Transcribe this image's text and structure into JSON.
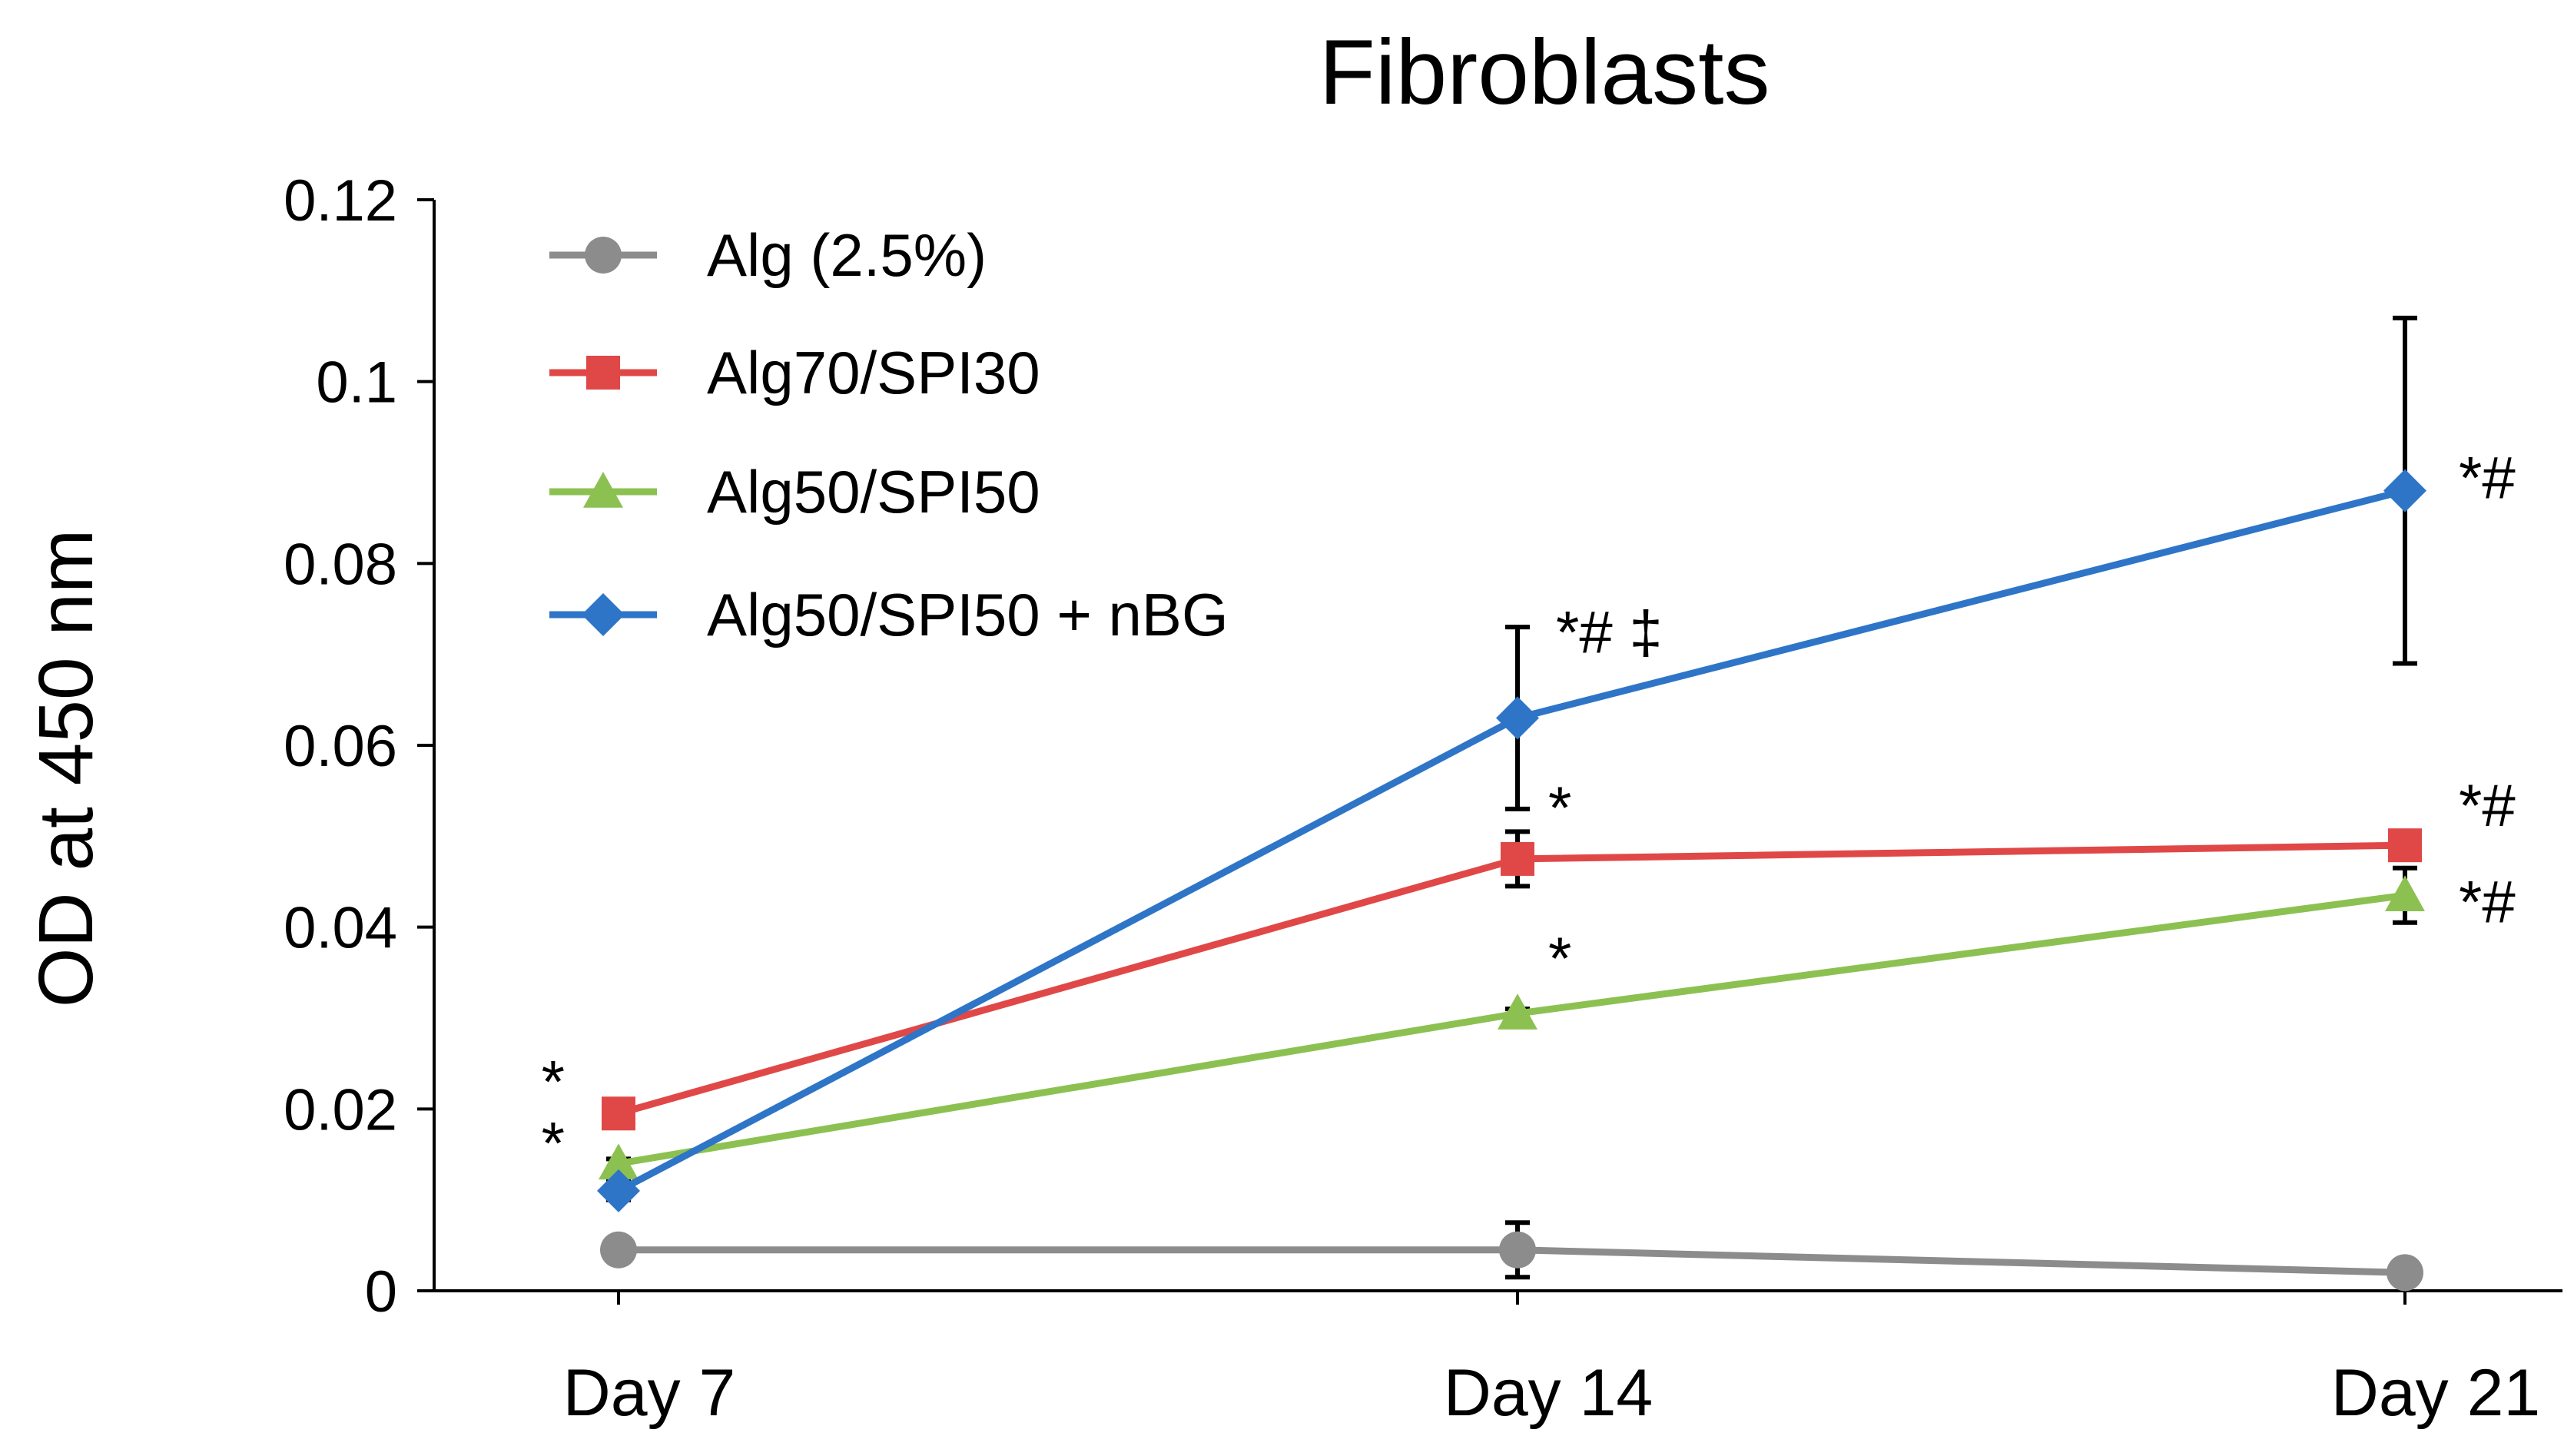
{
  "chart_data": {
    "type": "line",
    "title": "Fibroblasts",
    "xlabel": "",
    "ylabel": "OD at 450 nm",
    "categories": [
      "Day 7",
      "Day 14",
      "Day 21"
    ],
    "ylim": [
      0,
      0.12
    ],
    "yticks": [
      0,
      0.02,
      0.04,
      0.06,
      0.08,
      0.1,
      0.12
    ],
    "ytick_labels": [
      "0",
      "0.02",
      "0.04",
      "0.06",
      "0.08",
      "0.1",
      "0.12"
    ],
    "grid": false,
    "legend_position": "top-left",
    "series": [
      {
        "name": "Alg (2.5%)",
        "color": "#8c8c8c",
        "marker": "circle",
        "values": [
          0.0045,
          0.0045,
          0.002
        ],
        "errors": [
          0.0005,
          0.003,
          0.0005
        ],
        "annotations": [
          "",
          "",
          ""
        ]
      },
      {
        "name": "Alg70/SPI30",
        "color": "#e04848",
        "marker": "square",
        "values": [
          0.0195,
          0.0475,
          0.049
        ],
        "errors": [
          0.0005,
          0.003,
          0.0015
        ],
        "annotations": [
          "*",
          "*",
          "*#"
        ]
      },
      {
        "name": "Alg50/SPI50",
        "color": "#8cc152",
        "marker": "triangle",
        "values": [
          0.014,
          0.0305,
          0.0435
        ],
        "errors": [
          0.0005,
          0.0005,
          0.003
        ],
        "annotations": [
          "*",
          "*",
          "*#"
        ]
      },
      {
        "name": "Alg50/SPI50  + nBG",
        "color": "#2e75c7",
        "marker": "diamond",
        "values": [
          0.011,
          0.063,
          0.088
        ],
        "errors": [
          0.001,
          0.01,
          0.019
        ],
        "annotations": [
          "",
          "*# ‡",
          "*#"
        ]
      }
    ]
  }
}
